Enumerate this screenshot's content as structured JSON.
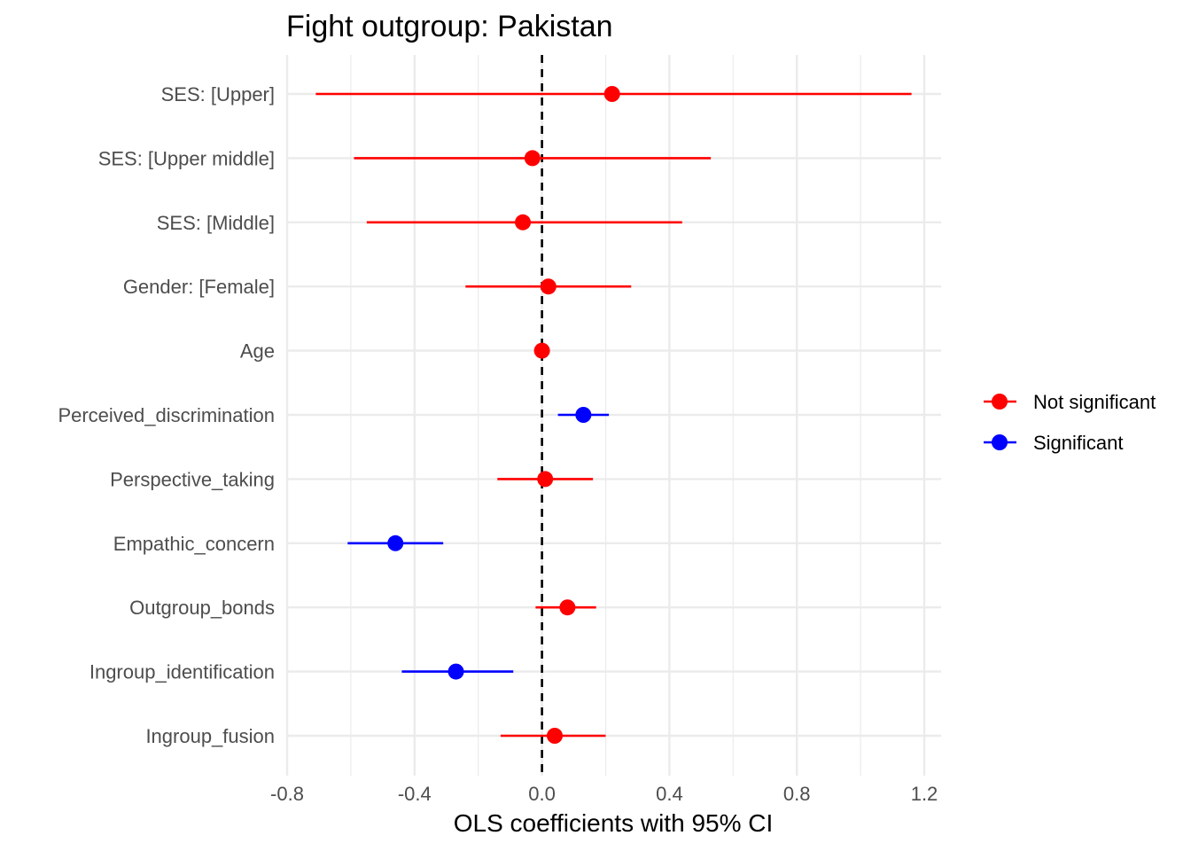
{
  "chart_data": {
    "type": "forest",
    "title": "Fight outgroup: Pakistan",
    "xlabel": "OLS coefficients with 95% CI",
    "ylabel": "",
    "xlim": [
      -0.8,
      1.2
    ],
    "x_ticks": [
      -0.8,
      -0.4,
      0.0,
      0.4,
      0.8,
      1.2
    ],
    "x_tick_labels": [
      "-0.8",
      "-0.4",
      "0.0",
      "0.4",
      "0.8",
      "1.2"
    ],
    "reference_line": 0,
    "grid": true,
    "legend_position": "right",
    "legend": [
      {
        "label": "Not significant",
        "color": "#ff0000"
      },
      {
        "label": "Significant",
        "color": "#0000ff"
      }
    ],
    "terms": [
      {
        "label": "SES:  [Upper]",
        "estimate": 0.22,
        "low": -0.71,
        "high": 1.16,
        "significant": false
      },
      {
        "label": "SES:  [Upper middle]",
        "estimate": -0.03,
        "low": -0.59,
        "high": 0.53,
        "significant": false
      },
      {
        "label": "SES:  [Middle]",
        "estimate": -0.06,
        "low": -0.55,
        "high": 0.44,
        "significant": false
      },
      {
        "label": "Gender:  [Female]",
        "estimate": 0.02,
        "low": -0.24,
        "high": 0.28,
        "significant": false
      },
      {
        "label": "Age",
        "estimate": 0.0,
        "low": -0.01,
        "high": 0.01,
        "significant": false
      },
      {
        "label": "Perceived_discrimination",
        "estimate": 0.13,
        "low": 0.05,
        "high": 0.21,
        "significant": true
      },
      {
        "label": "Perspective_taking",
        "estimate": 0.01,
        "low": -0.14,
        "high": 0.16,
        "significant": false
      },
      {
        "label": "Empathic_concern",
        "estimate": -0.46,
        "low": -0.61,
        "high": -0.31,
        "significant": true
      },
      {
        "label": "Outgroup_bonds",
        "estimate": 0.08,
        "low": -0.02,
        "high": 0.17,
        "significant": false
      },
      {
        "label": "Ingroup_identification",
        "estimate": -0.27,
        "low": -0.44,
        "high": -0.09,
        "significant": true
      },
      {
        "label": "Ingroup_fusion",
        "estimate": 0.04,
        "low": -0.13,
        "high": 0.2,
        "significant": false
      }
    ]
  }
}
